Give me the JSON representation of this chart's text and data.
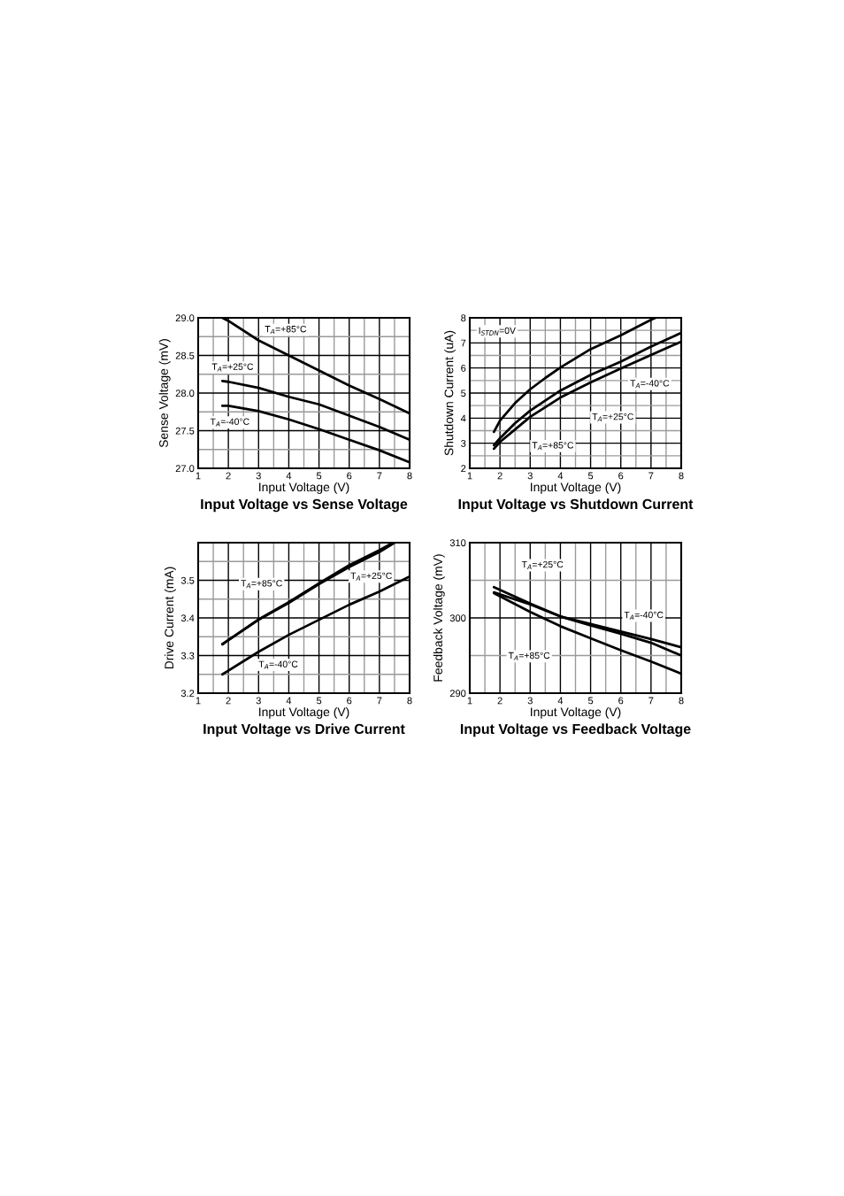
{
  "chart_data": [
    {
      "type": "line",
      "title": "Input Voltage vs Sense Voltage",
      "xlabel": "Input Voltage (V)",
      "ylabel": "Sense Voltage (mV)",
      "grid": true,
      "xlim": [
        1,
        8
      ],
      "ylim": [
        27.0,
        29.0
      ],
      "xticks": [
        1,
        {
          "value": 1.5,
          "label": null
        },
        2,
        {
          "value": 2.5,
          "label": null
        },
        3,
        {
          "value": 3.5,
          "label": null
        },
        4,
        {
          "value": 4.5,
          "label": null
        },
        5,
        {
          "value": 5.5,
          "label": null
        },
        6,
        {
          "value": 6.5,
          "label": null
        },
        7,
        {
          "value": 7.5,
          "label": null
        },
        8
      ],
      "yticks": [
        {
          "value": 27.0,
          "label": "27.0"
        },
        {
          "value": 27.25,
          "label": null
        },
        27.5,
        {
          "value": 27.75,
          "label": null
        },
        {
          "value": 28.0,
          "label": "28.0"
        },
        {
          "value": 28.25,
          "label": null
        },
        28.5,
        {
          "value": 28.75,
          "label": null
        },
        {
          "value": 29.0,
          "label": "29.0"
        }
      ],
      "series": [
        {
          "color": "#000000",
          "x": [
            1.8,
            2,
            3,
            4,
            5,
            6,
            7,
            8
          ],
          "values": [
            29.0,
            28.96,
            28.7,
            28.5,
            28.3,
            28.1,
            27.92,
            27.73
          ]
        },
        {
          "color": "#000000",
          "x": [
            1.8,
            2,
            3,
            4,
            5,
            6,
            7,
            8
          ],
          "values": [
            28.16,
            28.15,
            28.07,
            27.95,
            27.85,
            27.7,
            27.55,
            27.38
          ]
        },
        {
          "color": "#000000",
          "x": [
            1.8,
            2,
            3,
            4,
            5,
            6,
            7,
            8
          ],
          "values": [
            27.83,
            27.83,
            27.76,
            27.65,
            27.52,
            27.38,
            27.24,
            27.08
          ]
        }
      ],
      "annotations": [
        "T$_{A}$=+85°C",
        "T$_{A}$=+25°C",
        "T$_{A}$=-40°C"
      ]
    },
    {
      "type": "line",
      "title": "Input Voltage vs Shutdown Current",
      "xlabel": "Input Voltage (V)",
      "ylabel": "Shutdown Current (uA)",
      "grid": true,
      "xlim": [
        1,
        8
      ],
      "ylim": [
        2,
        8
      ],
      "xticks": [
        1,
        {
          "value": 1.5,
          "label": null
        },
        2,
        {
          "value": 2.5,
          "label": null
        },
        3,
        {
          "value": 3.5,
          "label": null
        },
        4,
        {
          "value": 4.5,
          "label": null
        },
        5,
        {
          "value": 5.5,
          "label": null
        },
        6,
        {
          "value": 6.5,
          "label": null
        },
        7,
        {
          "value": 7.5,
          "label": null
        },
        8
      ],
      "yticks": [
        2,
        {
          "value": 2.5,
          "label": null
        },
        3,
        {
          "value": 3.5,
          "label": null
        },
        4,
        {
          "value": 4.5,
          "label": null
        },
        5,
        {
          "value": 5.5,
          "label": null
        },
        6,
        {
          "value": 6.5,
          "label": null
        },
        7,
        {
          "value": 7.5,
          "label": null
        },
        8
      ],
      "series": [
        {
          "color": "#000000",
          "x": [
            1.8,
            2,
            2.5,
            3,
            3.5,
            4,
            5,
            6,
            7,
            7.15
          ],
          "values": [
            3.45,
            3.9,
            4.6,
            5.15,
            5.6,
            6.02,
            6.75,
            7.3,
            7.92,
            8.0
          ]
        },
        {
          "color": "#000000",
          "x": [
            1.8,
            2,
            2.5,
            3,
            4,
            5,
            6,
            7,
            8
          ],
          "values": [
            2.92,
            3.2,
            3.8,
            4.3,
            5.1,
            5.72,
            6.25,
            6.85,
            7.4
          ]
        },
        {
          "color": "#000000",
          "x": [
            1.8,
            2,
            2.5,
            3,
            4,
            5,
            6,
            7,
            8
          ],
          "values": [
            2.78,
            3.05,
            3.55,
            4.05,
            4.82,
            5.42,
            5.98,
            6.52,
            7.05
          ]
        }
      ],
      "annotations": [
        "I$_{STDN}$=0V",
        "T$_{A}$=-40°C",
        "T$_{A}$=+25°C",
        "T$_{A}$=+85°C"
      ]
    },
    {
      "type": "line",
      "title": "Input Voltage vs Drive Current",
      "xlabel": "Input Voltage (V)",
      "ylabel": "Drive Current (mA)",
      "grid": true,
      "xlim": [
        1,
        8
      ],
      "ylim": [
        3.2,
        3.6
      ],
      "xticks": [
        1,
        {
          "value": 1.5,
          "label": null
        },
        2,
        {
          "value": 2.5,
          "label": null
        },
        3,
        {
          "value": 3.5,
          "label": null
        },
        4,
        {
          "value": 4.5,
          "label": null
        },
        5,
        {
          "value": 5.5,
          "label": null
        },
        6,
        {
          "value": 6.5,
          "label": null
        },
        7,
        {
          "value": 7.5,
          "label": null
        },
        8
      ],
      "yticks": [
        3.2,
        {
          "value": 3.25,
          "label": null
        },
        3.3,
        {
          "value": 3.35,
          "label": null
        },
        3.4,
        {
          "value": 3.45,
          "label": null
        },
        3.5,
        {
          "value": 3.55,
          "label": null
        },
        {
          "value": 3.6,
          "label": null
        }
      ],
      "series": [
        {
          "color": "#000000",
          "x": [
            1.8,
            3,
            4,
            5,
            6,
            7,
            7.5
          ],
          "values": [
            3.33,
            3.395,
            3.44,
            3.49,
            3.535,
            3.575,
            3.6
          ]
        },
        {
          "color": "#000000",
          "x": [
            1.8,
            3,
            4,
            5,
            6,
            7,
            7.45
          ],
          "values": [
            3.33,
            3.396,
            3.442,
            3.492,
            3.54,
            3.58,
            3.6
          ]
        },
        {
          "color": "#000000",
          "x": [
            1.8,
            3,
            4,
            5,
            6,
            7,
            8
          ],
          "values": [
            3.25,
            3.31,
            3.355,
            3.395,
            3.435,
            3.47,
            3.51
          ]
        }
      ],
      "annotations": [
        "T$_{A}$=+85°C",
        "T$_{A}$=+25°C",
        "T$_{A}$=-40°C"
      ]
    },
    {
      "type": "line",
      "title": "Input Voltage vs Feedback Voltage",
      "xlabel": "Input Voltage (V)",
      "ylabel": "Feedback Voltage (mV)",
      "grid": true,
      "xlim": [
        1,
        8
      ],
      "ylim": [
        290,
        310
      ],
      "xticks": [
        1,
        {
          "value": 1.5,
          "label": null
        },
        2,
        {
          "value": 2.5,
          "label": null
        },
        3,
        {
          "value": 3.5,
          "label": null
        },
        4,
        {
          "value": 4.5,
          "label": null
        },
        5,
        {
          "value": 5.5,
          "label": null
        },
        6,
        {
          "value": 6.5,
          "label": null
        },
        7,
        {
          "value": 7.5,
          "label": null
        },
        8
      ],
      "yticks": [
        290,
        {
          "value": 295,
          "label": null
        },
        300,
        {
          "value": 305,
          "label": null
        },
        310
      ],
      "series": [
        {
          "color": "#000000",
          "x": [
            1.8,
            3,
            4,
            5,
            6,
            7,
            8
          ],
          "values": [
            304.1,
            301.9,
            300.2,
            299.0,
            297.9,
            296.7,
            295.0
          ]
        },
        {
          "color": "#000000",
          "x": [
            1.8,
            3,
            4,
            5,
            6,
            7,
            8
          ],
          "values": [
            303.4,
            301.8,
            300.2,
            299.2,
            298.2,
            297.2,
            296.1
          ]
        },
        {
          "color": "#000000",
          "x": [
            1.8,
            3,
            4,
            5,
            6,
            7,
            8
          ],
          "values": [
            303.3,
            300.8,
            298.9,
            297.3,
            295.7,
            294.2,
            292.6
          ]
        }
      ],
      "annotations": [
        "T$_{A}$=+25°C",
        "T$_{A}$=-40°C",
        "T$_{A}$=+85°C"
      ]
    }
  ]
}
